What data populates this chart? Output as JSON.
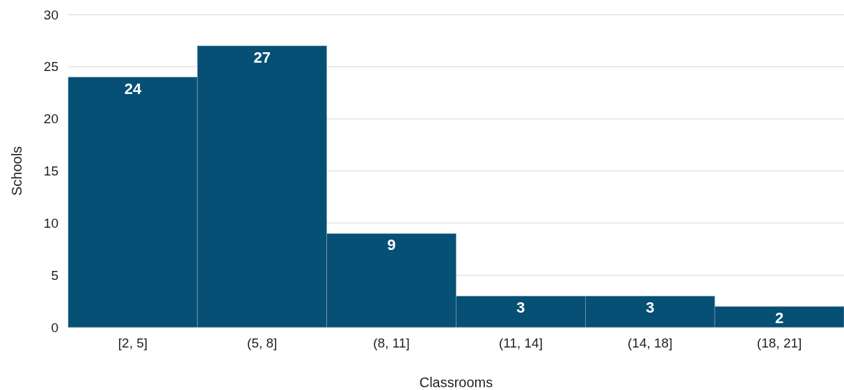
{
  "chart_data": {
    "type": "bar",
    "xlabel": "Classrooms",
    "ylabel": "Schools",
    "categories": [
      "[2, 5]",
      "(5, 8]",
      "(8, 11]",
      "(11, 14]",
      "(14, 18]",
      "(18, 21]"
    ],
    "values": [
      24,
      27,
      9,
      3,
      3,
      2
    ],
    "color": "#064f75",
    "ylim": [
      0,
      30
    ],
    "yticks": [
      0,
      5,
      10,
      15,
      20,
      25,
      30
    ],
    "grid": "y",
    "data_labels": true
  }
}
